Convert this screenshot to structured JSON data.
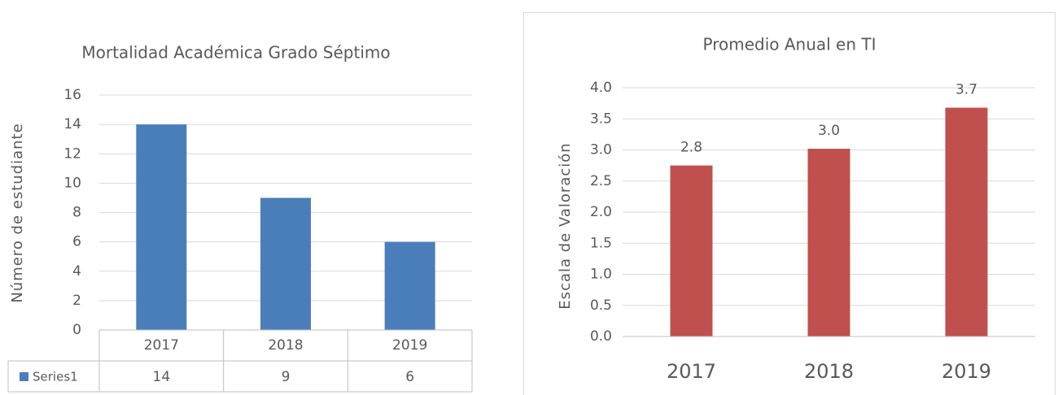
{
  "chart_data": [
    {
      "type": "bar",
      "title": "Mortalidad Académica Grado Séptimo",
      "y_label": "Número de estudiante",
      "categories": [
        "2017",
        "2018",
        "2019"
      ],
      "series": [
        {
          "name": "Series1",
          "color": "#4a7ebb",
          "values": [
            14,
            9,
            6
          ]
        }
      ],
      "ylim": [
        0,
        16
      ],
      "yticks": [
        0,
        2,
        4,
        6,
        8,
        10,
        12,
        14,
        16
      ],
      "grid": true,
      "data_table": true
    },
    {
      "type": "bar",
      "title": "Promedio Anual en TI",
      "y_label": "Escala de Valoración",
      "categories": [
        "2017",
        "2018",
        "2019"
      ],
      "series": [
        {
          "name": "Series1",
          "color": "#c0504d",
          "values": [
            2.75,
            3.02,
            3.68
          ],
          "value_labels": [
            "2.8",
            "3.0",
            "3.7"
          ]
        }
      ],
      "ylim": [
        0,
        4
      ],
      "yticks": [
        {
          "value": 0,
          "label": "0.0"
        },
        {
          "value": 0.5,
          "label": "0.5"
        },
        {
          "value": 1,
          "label": "1.0"
        },
        {
          "value": 1.5,
          "label": "1.5"
        },
        {
          "value": 2,
          "label": "2.0"
        },
        {
          "value": 2.5,
          "label": "2.5"
        },
        {
          "value": 3,
          "label": "3.0"
        },
        {
          "value": 3.5,
          "label": "3.5"
        },
        {
          "value": 4,
          "label": "4.0"
        }
      ],
      "grid": true,
      "show_legend": false
    }
  ]
}
